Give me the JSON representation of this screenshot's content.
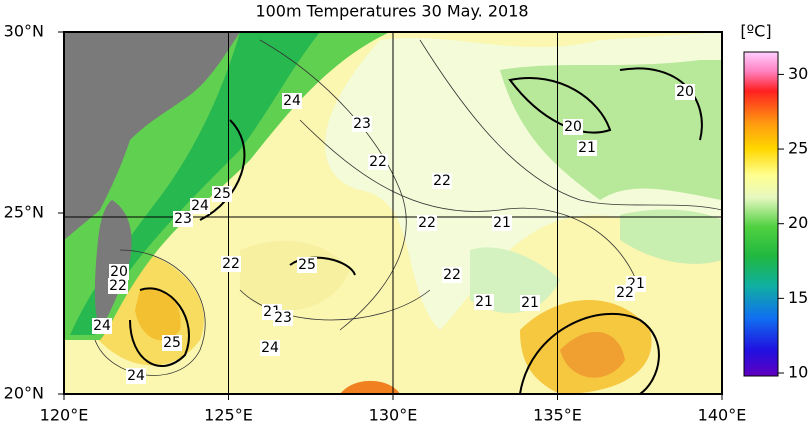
{
  "map": {
    "title": "100m Temperatures  30 May. 2018",
    "lon_ticks": [
      "120°E",
      "125°E",
      "130°E",
      "135°E",
      "140°E"
    ],
    "lat_ticks": [
      "30°N",
      "25°N",
      "20°N"
    ],
    "colorbar": {
      "unit": "[ºC]",
      "ticks": [
        30,
        25,
        20,
        15,
        10
      ]
    },
    "contour_labels": [
      "24",
      "23",
      "22",
      "20",
      "20",
      "21",
      "22",
      "25",
      "24",
      "23",
      "22",
      "21",
      "20",
      "22",
      "25",
      "22",
      "22",
      "21",
      "21",
      "21",
      "22",
      "24",
      "21",
      "23",
      "25",
      "24",
      "24"
    ]
  }
}
